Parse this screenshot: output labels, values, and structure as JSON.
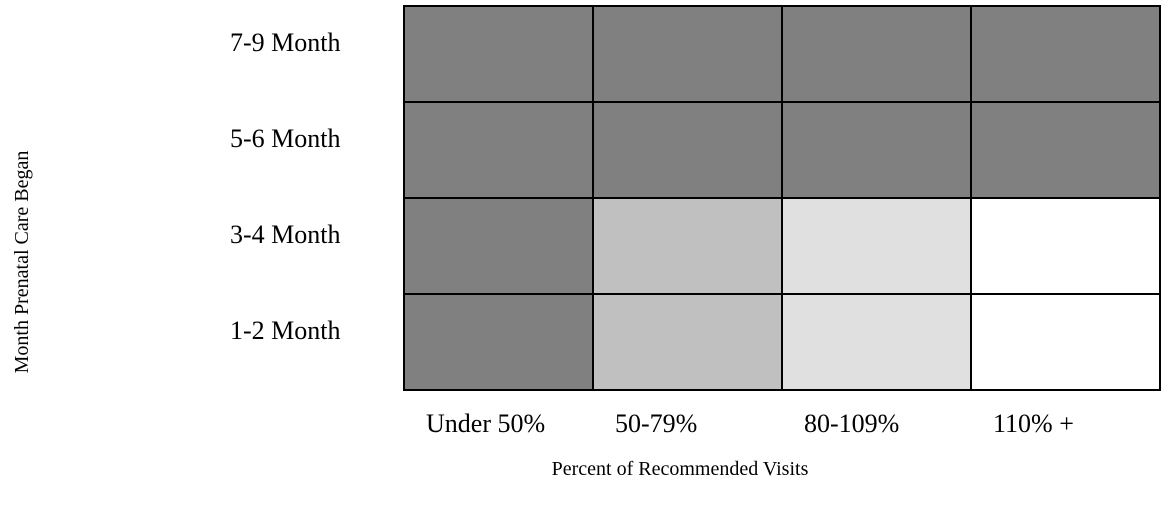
{
  "chart_data": {
    "type": "heatmap",
    "title": "",
    "xlabel": "Percent of Recommended Visits",
    "ylabel": "Month Prenatal Care Began",
    "x_categories": [
      "Under 50%",
      "50-79%",
      "80-109%",
      "110% +"
    ],
    "y_categories": [
      "7-9 Month",
      "5-6 Month",
      "3-4 Month",
      "1-2 Month"
    ],
    "cells": [
      [
        "#808080",
        "#808080",
        "#808080",
        "#808080"
      ],
      [
        "#808080",
        "#808080",
        "#808080",
        "#808080"
      ],
      [
        "#808080",
        "#c0c0c0",
        "#e0e0e0",
        "#ffffff"
      ],
      [
        "#808080",
        "#c0c0c0",
        "#e0e0e0",
        "#ffffff"
      ]
    ],
    "grid": true,
    "legend": "none"
  }
}
